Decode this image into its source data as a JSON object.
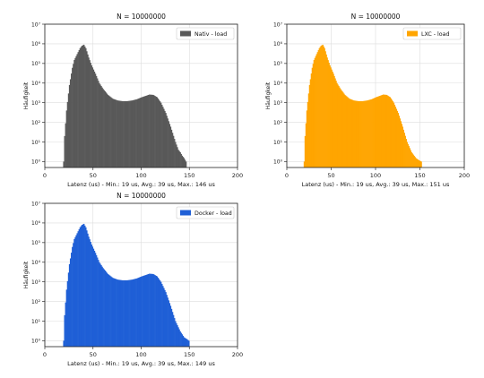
{
  "chart_data": [
    {
      "type": "bar",
      "title": "N = 10000000",
      "xlabel": "Latenz (us) - Min.: 19 us, Avg.: 39 us, Max.: 146 us",
      "ylabel": "Häufigkeit",
      "x_scale": "linear",
      "y_scale": "log",
      "xlim": [
        0,
        200
      ],
      "ylim": [
        0.5,
        10000000
      ],
      "x_ticks": [
        "0",
        "50",
        "100",
        "150",
        "200"
      ],
      "y_ticks": [
        "10⁰",
        "10¹",
        "10²",
        "10³",
        "10⁴",
        "10⁵",
        "10⁶",
        "10⁷"
      ],
      "grid": true,
      "legend_position": "top-right",
      "series": [
        {
          "name": "Nativ - load",
          "color": "#595959",
          "x": [
            19,
            20,
            22,
            25,
            28,
            30,
            33,
            36,
            38,
            40,
            42,
            45,
            48,
            52,
            56,
            60,
            65,
            70,
            75,
            80,
            85,
            90,
            95,
            100,
            105,
            108,
            112,
            116,
            120,
            125,
            130,
            135,
            138,
            140,
            142,
            144,
            146
          ],
          "values": [
            1,
            20,
            400,
            8000,
            60000,
            150000,
            300000,
            600000,
            800000,
            900000,
            600000,
            200000,
            80000,
            30000,
            10000,
            5000,
            2500,
            1600,
            1300,
            1200,
            1200,
            1300,
            1500,
            1900,
            2300,
            2600,
            2500,
            1900,
            1000,
            300,
            60,
            10,
            4,
            3,
            2,
            1.5,
            1
          ]
        }
      ]
    },
    {
      "type": "bar",
      "title": "N = 10000000",
      "xlabel": "Latenz (us) - Min.: 19 us, Avg.: 39 us, Max.: 151 us",
      "ylabel": "Häufigkeit",
      "x_scale": "linear",
      "y_scale": "log",
      "xlim": [
        0,
        200
      ],
      "ylim": [
        0.5,
        10000000
      ],
      "x_ticks": [
        "0",
        "50",
        "100",
        "150",
        "200"
      ],
      "y_ticks": [
        "10⁰",
        "10¹",
        "10²",
        "10³",
        "10⁴",
        "10⁵",
        "10⁶",
        "10⁷"
      ],
      "grid": true,
      "legend_position": "top-right",
      "series": [
        {
          "name": "LXC - load",
          "color": "#ffa500",
          "x": [
            19,
            20,
            22,
            25,
            28,
            30,
            33,
            36,
            38,
            40,
            42,
            45,
            48,
            52,
            56,
            60,
            65,
            70,
            75,
            80,
            85,
            90,
            95,
            100,
            105,
            108,
            112,
            116,
            120,
            125,
            130,
            135,
            140,
            145,
            148,
            151
          ],
          "values": [
            1,
            20,
            400,
            8000,
            60000,
            150000,
            300000,
            600000,
            800000,
            900000,
            600000,
            200000,
            80000,
            30000,
            10000,
            5000,
            2500,
            1600,
            1300,
            1200,
            1200,
            1300,
            1500,
            1900,
            2300,
            2600,
            2500,
            1900,
            1000,
            300,
            60,
            10,
            3,
            1.5,
            1.2,
            1
          ]
        }
      ]
    },
    {
      "type": "bar",
      "title": "N = 10000000",
      "xlabel": "Latenz (us) - Min.: 19 us, Avg.: 39 us, Max.: 149 us",
      "ylabel": "Häufigkeit",
      "x_scale": "linear",
      "y_scale": "log",
      "xlim": [
        0,
        200
      ],
      "ylim": [
        0.5,
        10000000
      ],
      "x_ticks": [
        "0",
        "50",
        "100",
        "150",
        "200"
      ],
      "y_ticks": [
        "10⁰",
        "10¹",
        "10²",
        "10³",
        "10⁴",
        "10⁵",
        "10⁶",
        "10⁷"
      ],
      "grid": true,
      "legend_position": "top-right",
      "series": [
        {
          "name": "Docker - load",
          "color": "#1f5fd6",
          "x": [
            19,
            20,
            22,
            25,
            28,
            30,
            33,
            36,
            38,
            40,
            42,
            45,
            48,
            52,
            56,
            60,
            65,
            70,
            75,
            80,
            85,
            90,
            95,
            100,
            105,
            108,
            112,
            116,
            120,
            125,
            130,
            135,
            140,
            144,
            147,
            149
          ],
          "values": [
            1,
            20,
            400,
            8000,
            60000,
            150000,
            300000,
            600000,
            800000,
            900000,
            600000,
            200000,
            80000,
            30000,
            10000,
            5000,
            2500,
            1600,
            1300,
            1200,
            1200,
            1300,
            1500,
            1900,
            2300,
            2600,
            2500,
            1900,
            1000,
            300,
            60,
            10,
            3,
            1.5,
            1.2,
            1
          ]
        }
      ]
    }
  ]
}
